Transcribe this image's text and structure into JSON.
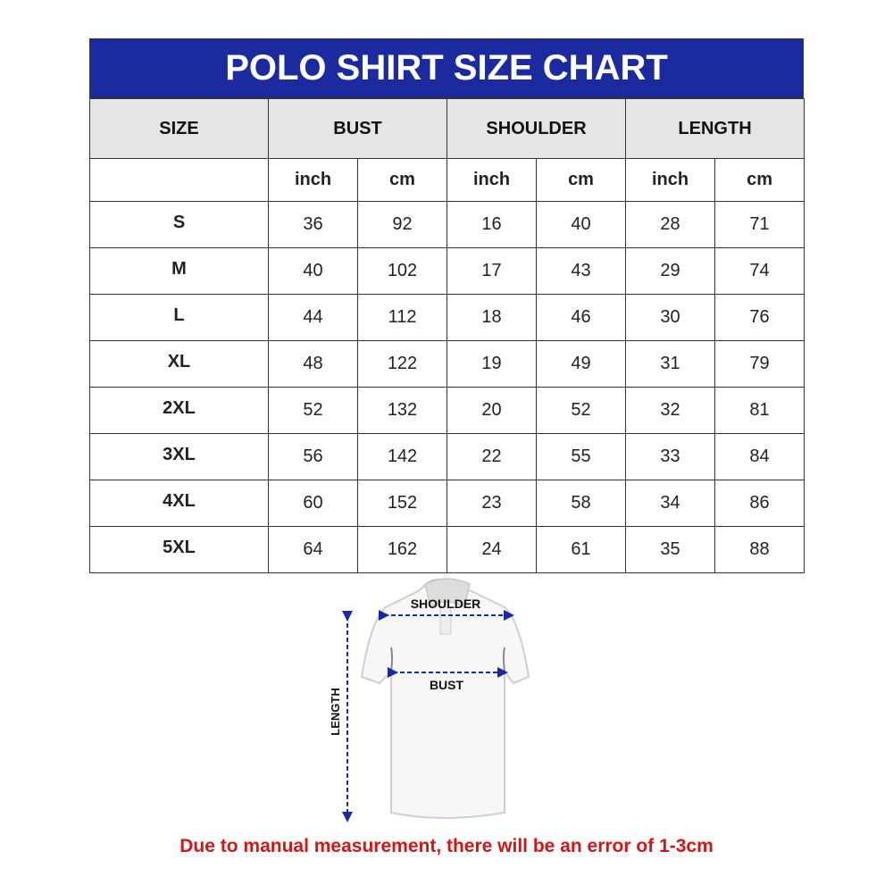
{
  "title": "POLO SHIRT SIZE CHART",
  "headers": [
    "SIZE",
    "BUST",
    "SHOULDER",
    "LENGTH"
  ],
  "subheaders": [
    "inch",
    "cm",
    "inch",
    "cm",
    "inch",
    "cm"
  ],
  "rows": [
    {
      "size": "S",
      "values": [
        "36",
        "92",
        "16",
        "40",
        "28",
        "71"
      ]
    },
    {
      "size": "M",
      "values": [
        "40",
        "102",
        "17",
        "43",
        "29",
        "74"
      ]
    },
    {
      "size": "L",
      "values": [
        "44",
        "112",
        "18",
        "46",
        "30",
        "76"
      ]
    },
    {
      "size": "XL",
      "values": [
        "48",
        "122",
        "19",
        "49",
        "31",
        "79"
      ]
    },
    {
      "size": "2XL",
      "values": [
        "52",
        "132",
        "20",
        "52",
        "32",
        "81"
      ]
    },
    {
      "size": "3XL",
      "values": [
        "56",
        "142",
        "22",
        "55",
        "33",
        "84"
      ]
    },
    {
      "size": "4XL",
      "values": [
        "60",
        "152",
        "23",
        "58",
        "34",
        "86"
      ]
    },
    {
      "size": "5XL",
      "values": [
        "64",
        "162",
        "24",
        "61",
        "35",
        "88"
      ]
    }
  ],
  "diagram": {
    "shoulder": "SHOULDER",
    "bust": "BUST",
    "length": "LENGTH"
  },
  "note": "Due to manual measurement, there will be an error of 1-3cm",
  "colors": {
    "header_blue": "#1b2a9e",
    "header_gray": "#e5e5e5",
    "note_red": "#d01616",
    "arrow_blue": "#1b2a9e"
  }
}
